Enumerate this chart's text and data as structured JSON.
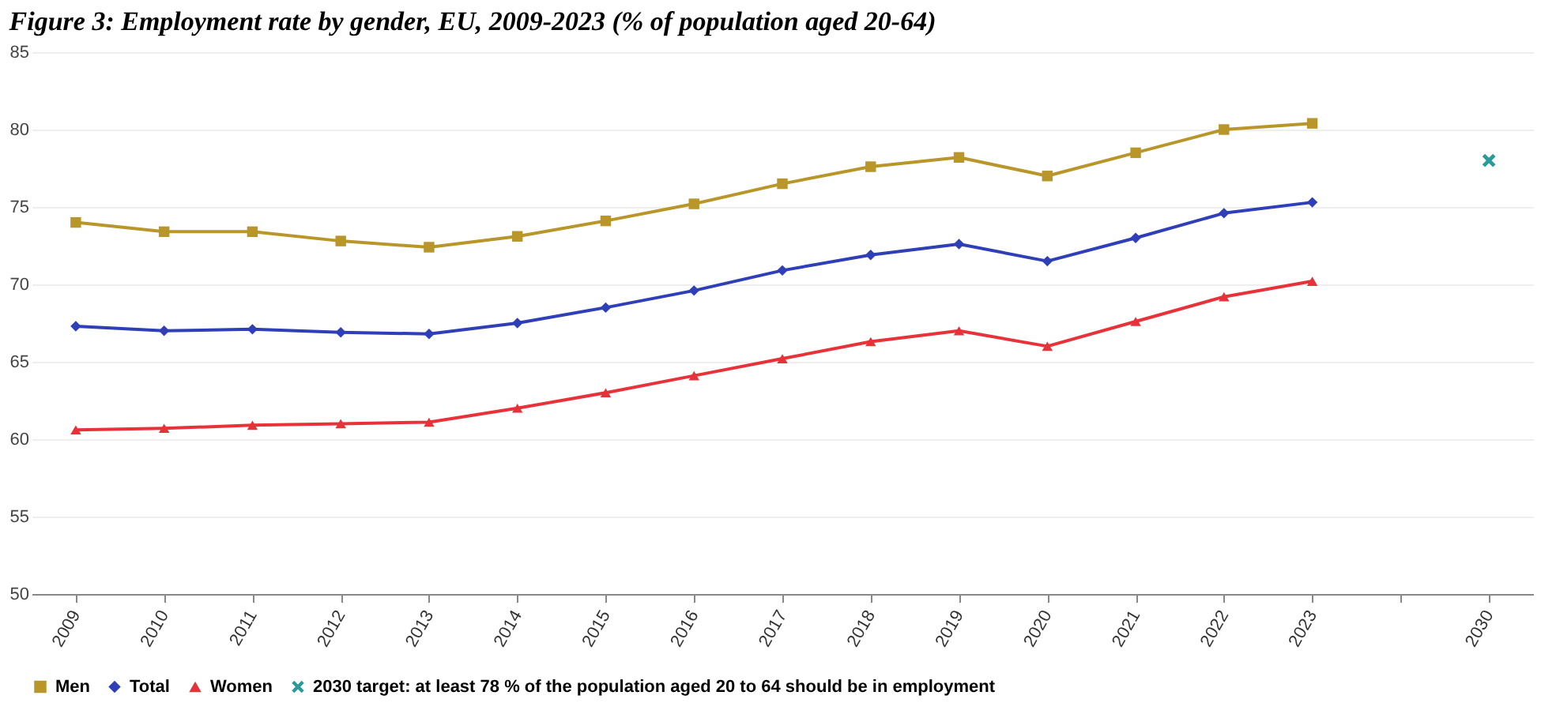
{
  "chart_data": {
    "type": "line",
    "title": "Figure 3: Employment rate by gender, EU, 2009-2023 (% of population aged 20-64)",
    "categories": [
      "2009",
      "2010",
      "2011",
      "2012",
      "2013",
      "2014",
      "2015",
      "2016",
      "2017",
      "2018",
      "2019",
      "2020",
      "2021",
      "2022",
      "2023",
      null,
      "2030"
    ],
    "series": [
      {
        "name": "Men",
        "color": "#b8962a",
        "marker": "square",
        "line_style": "solid",
        "values": [
          74.0,
          73.4,
          73.4,
          72.8,
          72.4,
          73.1,
          74.1,
          75.2,
          76.5,
          77.6,
          78.2,
          77.0,
          78.5,
          80.0,
          80.4,
          null,
          null
        ]
      },
      {
        "name": "Total",
        "color": "#2e3fb8",
        "marker": "diamond",
        "line_style": "solid",
        "values": [
          67.3,
          67.0,
          67.1,
          66.9,
          66.8,
          67.5,
          68.5,
          69.6,
          70.9,
          71.9,
          72.6,
          71.5,
          73.0,
          74.6,
          75.3,
          null,
          null
        ]
      },
      {
        "name": "Women",
        "color": "#e8323a",
        "marker": "triangle",
        "line_style": "solid",
        "values": [
          60.6,
          60.7,
          60.9,
          61.0,
          61.1,
          62.0,
          63.0,
          64.1,
          65.2,
          66.3,
          67.0,
          66.0,
          67.6,
          69.2,
          70.2,
          null,
          null
        ]
      },
      {
        "name": "2030 target: at least 78 % of the population aged 20 to 64 should be in employment",
        "type": "scatter",
        "color": "#2a9a9a",
        "marker": "cross",
        "values": [
          null,
          null,
          null,
          null,
          null,
          null,
          null,
          null,
          null,
          null,
          null,
          null,
          null,
          null,
          null,
          null,
          78
        ]
      }
    ],
    "ylim": [
      50,
      85
    ],
    "yticks": [
      50,
      55,
      60,
      65,
      70,
      75,
      80,
      85
    ],
    "grid": "y",
    "legend": "bottom"
  }
}
